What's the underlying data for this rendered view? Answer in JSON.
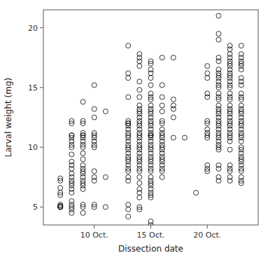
{
  "chart_data": {
    "type": "scatter",
    "xlabel": "Dissection date",
    "ylabel": "Larval weight (mg)",
    "xlim": [
      5.5,
      24.5
    ],
    "ylim": [
      3.5,
      21.5
    ],
    "xticks": [
      {
        "value": 10,
        "label": "10 Oct."
      },
      {
        "value": 15,
        "label": "15 Oct."
      },
      {
        "value": 20,
        "label": "20 Oct."
      }
    ],
    "yticks": [
      5,
      10,
      15,
      20
    ],
    "color": "#000000",
    "marker": "circle",
    "x": [
      7,
      7,
      7,
      7,
      7,
      7,
      7,
      7,
      7,
      7,
      8,
      8,
      8,
      8,
      8,
      8,
      8,
      8,
      8,
      8,
      8,
      8,
      8,
      8,
      8,
      8,
      8,
      8,
      8,
      8,
      8,
      8,
      8,
      8,
      9,
      9,
      9,
      9,
      9,
      9,
      9,
      9,
      9,
      9,
      9,
      9,
      9,
      9,
      9,
      9,
      9,
      9,
      9,
      9,
      9,
      9,
      9,
      9,
      10,
      10,
      10,
      10,
      10,
      10,
      10,
      10,
      10,
      10,
      10,
      10,
      10,
      10,
      11,
      11,
      11,
      13,
      13,
      13,
      13,
      13,
      13,
      13,
      13,
      13,
      13,
      13,
      13,
      13,
      13,
      13,
      13,
      13,
      13,
      13,
      13,
      13,
      13,
      13,
      13,
      13,
      13,
      13,
      13,
      14,
      14,
      14,
      14,
      14,
      14,
      14,
      14,
      14,
      14,
      14,
      14,
      14,
      14,
      14,
      14,
      14,
      14,
      14,
      14,
      14,
      14,
      14,
      14,
      14,
      14,
      14,
      14,
      14,
      14,
      14,
      14,
      14,
      14,
      14,
      14,
      14,
      15,
      15,
      15,
      15,
      15,
      15,
      15,
      15,
      15,
      15,
      15,
      15,
      15,
      15,
      15,
      15,
      15,
      15,
      15,
      15,
      15,
      15,
      15,
      15,
      15,
      15,
      15,
      15,
      15,
      15,
      15,
      15,
      15,
      15,
      15,
      15,
      15,
      15,
      15,
      15,
      15,
      15,
      15,
      15,
      16,
      16,
      16,
      16,
      16,
      16,
      16,
      16,
      16,
      16,
      16,
      16,
      16,
      16,
      16,
      16,
      16,
      16,
      16,
      16,
      16,
      16,
      16,
      17,
      17,
      17,
      17,
      17,
      17,
      18,
      19,
      20,
      20,
      20,
      20,
      20,
      20,
      20,
      20,
      20,
      20,
      20,
      20,
      20,
      20,
      21,
      21,
      21,
      21,
      21,
      21,
      21,
      21,
      21,
      21,
      21,
      21,
      21,
      21,
      21,
      21,
      21,
      21,
      21,
      21,
      21,
      21,
      21,
      21,
      21,
      21,
      21,
      21,
      21,
      21,
      21,
      21,
      21,
      21,
      21,
      22,
      22,
      22,
      22,
      22,
      22,
      22,
      22,
      22,
      22,
      22,
      22,
      22,
      22,
      22,
      22,
      22,
      22,
      22,
      22,
      22,
      22,
      22,
      22,
      22,
      22,
      22,
      22,
      22,
      22,
      22,
      22,
      22,
      22,
      22,
      22,
      23,
      23,
      23,
      23,
      23,
      23,
      23,
      23,
      23,
      23,
      23,
      23,
      23,
      23,
      23,
      23,
      23,
      23,
      23,
      23,
      23,
      23,
      23,
      23,
      23,
      23,
      23,
      23,
      23,
      23,
      23,
      23,
      23,
      23,
      23,
      23,
      23,
      23
    ],
    "values": [
      6.2,
      6.0,
      5.2,
      5.1,
      5.0,
      5.0,
      5.0,
      7.4,
      7.2,
      6.6,
      12.2,
      12.0,
      11.0,
      11.0,
      10.8,
      10.5,
      10.2,
      10.0,
      9.4,
      8.8,
      8.5,
      8.2,
      7.8,
      7.5,
      7.2,
      7.0,
      6.8,
      6.5,
      6.2,
      5.5,
      5.2,
      5.0,
      4.8,
      4.5,
      13.8,
      12.2,
      12.0,
      11.2,
      11.0,
      11.0,
      10.8,
      10.5,
      10.2,
      10.0,
      9.5,
      9.0,
      8.5,
      8.2,
      8.0,
      7.8,
      7.5,
      7.2,
      7.0,
      6.8,
      6.5,
      5.2,
      5.0,
      4.5,
      15.2,
      13.2,
      12.5,
      11.2,
      11.0,
      10.8,
      10.5,
      10.2,
      10.0,
      8.0,
      7.5,
      5.2,
      5.0,
      7.2,
      13.0,
      5.0,
      7.5,
      18.5,
      16.2,
      15.8,
      14.2,
      12.2,
      12.0,
      12.0,
      11.8,
      11.5,
      11.2,
      11.0,
      10.8,
      10.5,
      10.2,
      10.0,
      9.8,
      9.5,
      9.2,
      9.0,
      8.8,
      8.5,
      8.2,
      8.0,
      7.5,
      7.2,
      5.2,
      4.8,
      4.2,
      17.8,
      17.5,
      17.2,
      16.8,
      15.5,
      14.8,
      14.2,
      13.5,
      13.2,
      13.0,
      12.8,
      12.5,
      12.2,
      12.0,
      11.8,
      11.5,
      11.2,
      11.0,
      10.8,
      10.5,
      10.2,
      10.0,
      9.8,
      9.5,
      9.2,
      9.0,
      8.8,
      8.5,
      8.2,
      8.0,
      7.5,
      7.0,
      6.5,
      6.2,
      5.8,
      5.0,
      4.8,
      17.2,
      17.0,
      16.5,
      16.2,
      15.8,
      15.2,
      14.5,
      14.2,
      14.0,
      13.5,
      13.2,
      13.0,
      12.8,
      12.5,
      12.2,
      12.0,
      11.8,
      11.5,
      11.2,
      11.0,
      11.0,
      11.0,
      10.8,
      10.5,
      10.2,
      10.0,
      9.8,
      9.5,
      9.2,
      9.0,
      8.8,
      8.5,
      8.2,
      8.0,
      7.5,
      7.2,
      7.0,
      6.8,
      6.5,
      6.2,
      6.0,
      5.8,
      3.8,
      3.5,
      17.5,
      15.2,
      14.2,
      13.5,
      13.0,
      12.2,
      12.0,
      11.5,
      11.2,
      11.0,
      10.8,
      10.5,
      10.2,
      10.0,
      9.8,
      9.5,
      9.2,
      9.0,
      8.8,
      8.5,
      8.2,
      8.0,
      7.5,
      17.5,
      14.0,
      13.5,
      13.2,
      12.5,
      10.8,
      10.8,
      6.2,
      16.8,
      16.2,
      15.8,
      14.5,
      14.2,
      12.2,
      12.0,
      11.5,
      11.2,
      11.0,
      10.8,
      8.5,
      8.2,
      8.0,
      21.0,
      19.5,
      19.0,
      17.5,
      17.2,
      16.5,
      16.2,
      16.0,
      15.8,
      15.5,
      15.2,
      15.0,
      14.5,
      14.2,
      14.0,
      13.5,
      13.2,
      13.0,
      12.8,
      12.5,
      12.2,
      12.0,
      11.8,
      11.5,
      11.2,
      11.0,
      10.8,
      10.5,
      10.2,
      10.0,
      9.8,
      8.5,
      8.2,
      7.5,
      7.2,
      18.5,
      18.2,
      17.8,
      17.5,
      17.2,
      17.0,
      16.8,
      16.5,
      16.2,
      16.0,
      15.8,
      15.5,
      15.2,
      15.0,
      14.5,
      14.2,
      14.0,
      13.5,
      13.2,
      13.0,
      12.8,
      12.5,
      12.2,
      12.0,
      11.8,
      11.5,
      11.2,
      11.0,
      10.8,
      10.5,
      9.8,
      8.5,
      8.2,
      8.0,
      7.5,
      7.2,
      18.5,
      17.8,
      17.5,
      17.2,
      17.0,
      16.8,
      16.5,
      15.8,
      15.5,
      15.2,
      14.5,
      14.2,
      14.0,
      13.5,
      13.2,
      13.0,
      12.8,
      12.5,
      12.2,
      12.0,
      11.8,
      11.5,
      11.2,
      11.0,
      10.8,
      10.5,
      10.0,
      9.8,
      9.5,
      9.2,
      9.0,
      8.8,
      8.5,
      8.2,
      8.0,
      7.5,
      7.2,
      7.0
    ]
  }
}
